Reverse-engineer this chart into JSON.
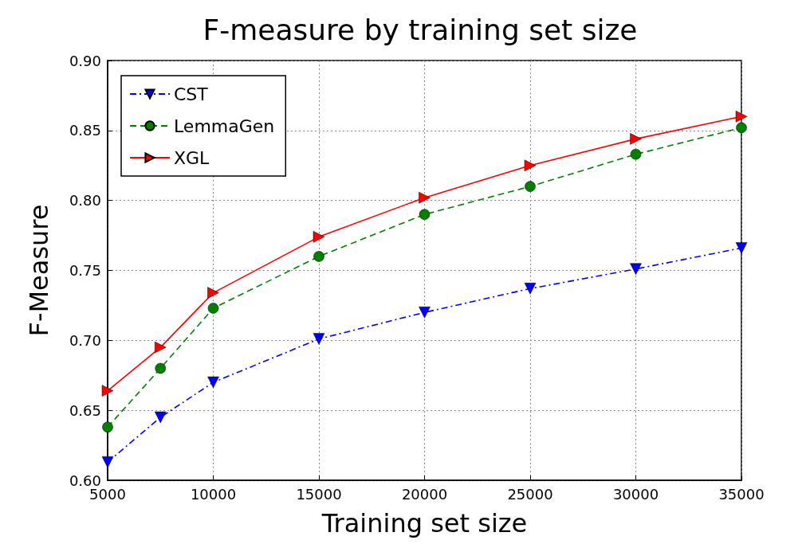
{
  "chart_data": {
    "type": "line",
    "title": "F-measure by training set size",
    "xlabel": "Training set size",
    "ylabel": "F-Measure",
    "x": [
      5000,
      7500,
      10000,
      15000,
      20000,
      25000,
      30000,
      35000
    ],
    "series": [
      {
        "name": "CST",
        "color": "#0000ff",
        "marker": "triangle_down",
        "line_style": "dashdot",
        "values": [
          0.613,
          0.645,
          0.67,
          0.701,
          0.72,
          0.737,
          0.751,
          0.766
        ]
      },
      {
        "name": "LemmaGen",
        "color": "#007f00",
        "marker": "circle",
        "line_style": "dashed",
        "values": [
          0.638,
          0.68,
          0.723,
          0.76,
          0.79,
          0.81,
          0.833,
          0.852
        ]
      },
      {
        "name": "XGL",
        "color": "#ff0000",
        "marker": "triangle_right",
        "line_style": "solid",
        "values": [
          0.664,
          0.695,
          0.734,
          0.774,
          0.802,
          0.825,
          0.844,
          0.86
        ]
      }
    ],
    "xlim": [
      5000,
      35000
    ],
    "xticks": [
      5000,
      10000,
      15000,
      20000,
      25000,
      30000,
      35000
    ],
    "ylim": [
      0.6,
      0.9
    ],
    "yticks": [
      {
        "value": 0.6,
        "label": "0.60"
      },
      0.65,
      {
        "value": 0.7,
        "label": "0.70"
      },
      0.75,
      {
        "value": 0.8,
        "label": "0.80"
      },
      0.85,
      {
        "value": 0.9,
        "label": "0.90"
      }
    ],
    "grid": true,
    "legend": "top left"
  }
}
